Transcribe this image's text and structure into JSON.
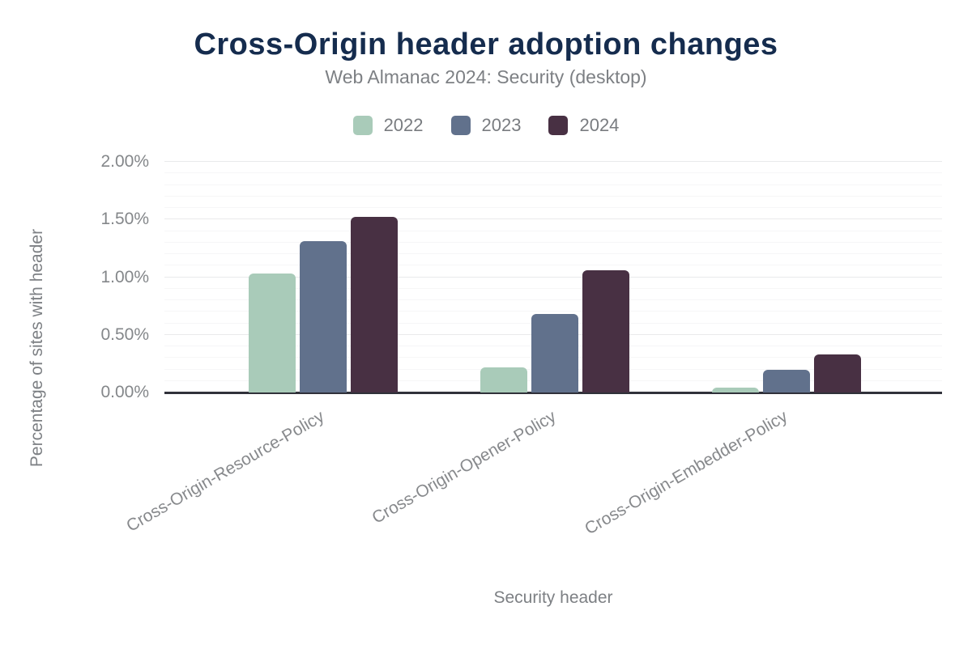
{
  "chart_data": {
    "type": "bar",
    "title": "Cross-Origin header adoption changes",
    "subtitle": "Web Almanac 2024: Security (desktop)",
    "xlabel": "Security header",
    "ylabel": "Percentage of sites with header",
    "unit": "%",
    "categories": [
      "Cross-Origin-Resource-Policy",
      "Cross-Origin-Opener-Policy",
      "Cross-Origin-Embedder-Policy"
    ],
    "series": [
      {
        "name": "2022",
        "color": "#a9cbb9",
        "values": [
          1.03,
          0.22,
          0.04
        ]
      },
      {
        "name": "2023",
        "color": "#61718c",
        "values": [
          1.31,
          0.68,
          0.2
        ]
      },
      {
        "name": "2024",
        "color": "#483043",
        "values": [
          1.52,
          1.06,
          0.33
        ]
      }
    ],
    "ylim": [
      0,
      2.0
    ],
    "yticks": [
      0.0,
      0.5,
      1.0,
      1.5,
      2.0
    ],
    "ytick_labels": [
      "0.00%",
      "0.50%",
      "1.00%",
      "1.50%",
      "2.00%"
    ],
    "grid": {
      "minor_step": 0.1,
      "major_step": 0.5,
      "visible": true
    },
    "legend_position": "top",
    "colors": {
      "title": "#152c4e",
      "subtitle": "#7d8084",
      "axis_text": "#84878a",
      "baseline": "#30313a",
      "gridline_major": "#e9eaeb",
      "gridline_minor": "#f6f6f7",
      "background": "#ffffff"
    }
  }
}
